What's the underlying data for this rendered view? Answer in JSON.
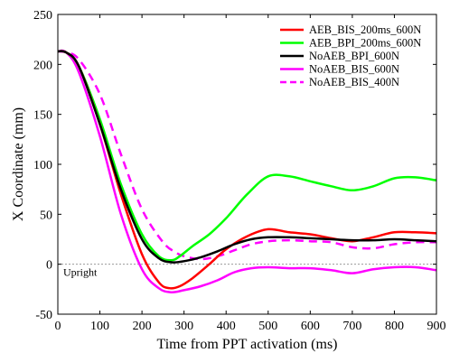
{
  "chart_data": {
    "type": "line",
    "title": "",
    "xlabel": "Time from PPT activation (ms)",
    "ylabel": "X Coordinate (mm)",
    "xlim": [
      0,
      900
    ],
    "ylim": [
      -50,
      250
    ],
    "xticks": [
      0,
      100,
      200,
      300,
      400,
      500,
      600,
      700,
      800,
      900
    ],
    "yticks": [
      -50,
      0,
      50,
      100,
      150,
      200,
      250
    ],
    "grid": false,
    "legend_position": "top-right",
    "reference_line": {
      "y": 0,
      "label": "Upright",
      "style": "dotted",
      "color": "#999999"
    },
    "series": [
      {
        "name": "AEB_BIS_200ms_600N",
        "color": "#ff0000",
        "dash": "solid",
        "x": [
          0,
          20,
          50,
          100,
          150,
          200,
          240,
          265,
          290,
          320,
          360,
          400,
          450,
          500,
          550,
          600,
          650,
          700,
          750,
          800,
          850,
          900
        ],
        "y": [
          213,
          212,
          198,
          140,
          70,
          10,
          -18,
          -24,
          -22,
          -14,
          0,
          15,
          28,
          35,
          32,
          30,
          26,
          23,
          27,
          32,
          32,
          31
        ]
      },
      {
        "name": "AEB_BPI_200ms_600N",
        "color": "#00ff00",
        "dash": "solid",
        "x": [
          0,
          20,
          50,
          100,
          150,
          200,
          240,
          270,
          290,
          320,
          360,
          400,
          450,
          500,
          550,
          600,
          650,
          700,
          750,
          800,
          850,
          900
        ],
        "y": [
          213,
          212,
          198,
          145,
          80,
          30,
          8,
          4,
          8,
          18,
          30,
          46,
          70,
          88,
          88,
          83,
          78,
          74,
          78,
          86,
          87,
          84
        ]
      },
      {
        "name": "NoAEB_BPI_600N",
        "color": "#000000",
        "dash": "solid",
        "x": [
          0,
          20,
          50,
          100,
          150,
          200,
          240,
          270,
          300,
          340,
          380,
          420,
          460,
          500,
          550,
          600,
          650,
          700,
          750,
          800,
          850,
          900
        ],
        "y": [
          213,
          212,
          198,
          140,
          75,
          25,
          6,
          2,
          3,
          7,
          13,
          20,
          25,
          27,
          27,
          26,
          25,
          24,
          24,
          25,
          24,
          23
        ]
      },
      {
        "name": "NoAEB_BIS_600N",
        "color": "#ff00ff",
        "dash": "solid",
        "x": [
          0,
          20,
          50,
          100,
          150,
          200,
          240,
          270,
          300,
          340,
          380,
          420,
          460,
          500,
          550,
          600,
          650,
          700,
          750,
          800,
          850,
          900
        ],
        "y": [
          213,
          212,
          192,
          128,
          50,
          -5,
          -24,
          -28,
          -26,
          -22,
          -16,
          -8,
          -4,
          -3,
          -4,
          -4,
          -6,
          -9,
          -5,
          -3,
          -3,
          -6
        ]
      },
      {
        "name": "NoAEB_BIS_400N",
        "color": "#ff00ff",
        "dash": "dashed",
        "x": [
          0,
          20,
          50,
          100,
          150,
          200,
          250,
          280,
          300,
          340,
          380,
          420,
          460,
          500,
          550,
          600,
          650,
          700,
          750,
          800,
          850,
          900
        ],
        "y": [
          213,
          212,
          205,
          170,
          110,
          55,
          22,
          12,
          8,
          5,
          8,
          14,
          20,
          23,
          24,
          23,
          22,
          17,
          16,
          20,
          22,
          22
        ]
      }
    ]
  }
}
